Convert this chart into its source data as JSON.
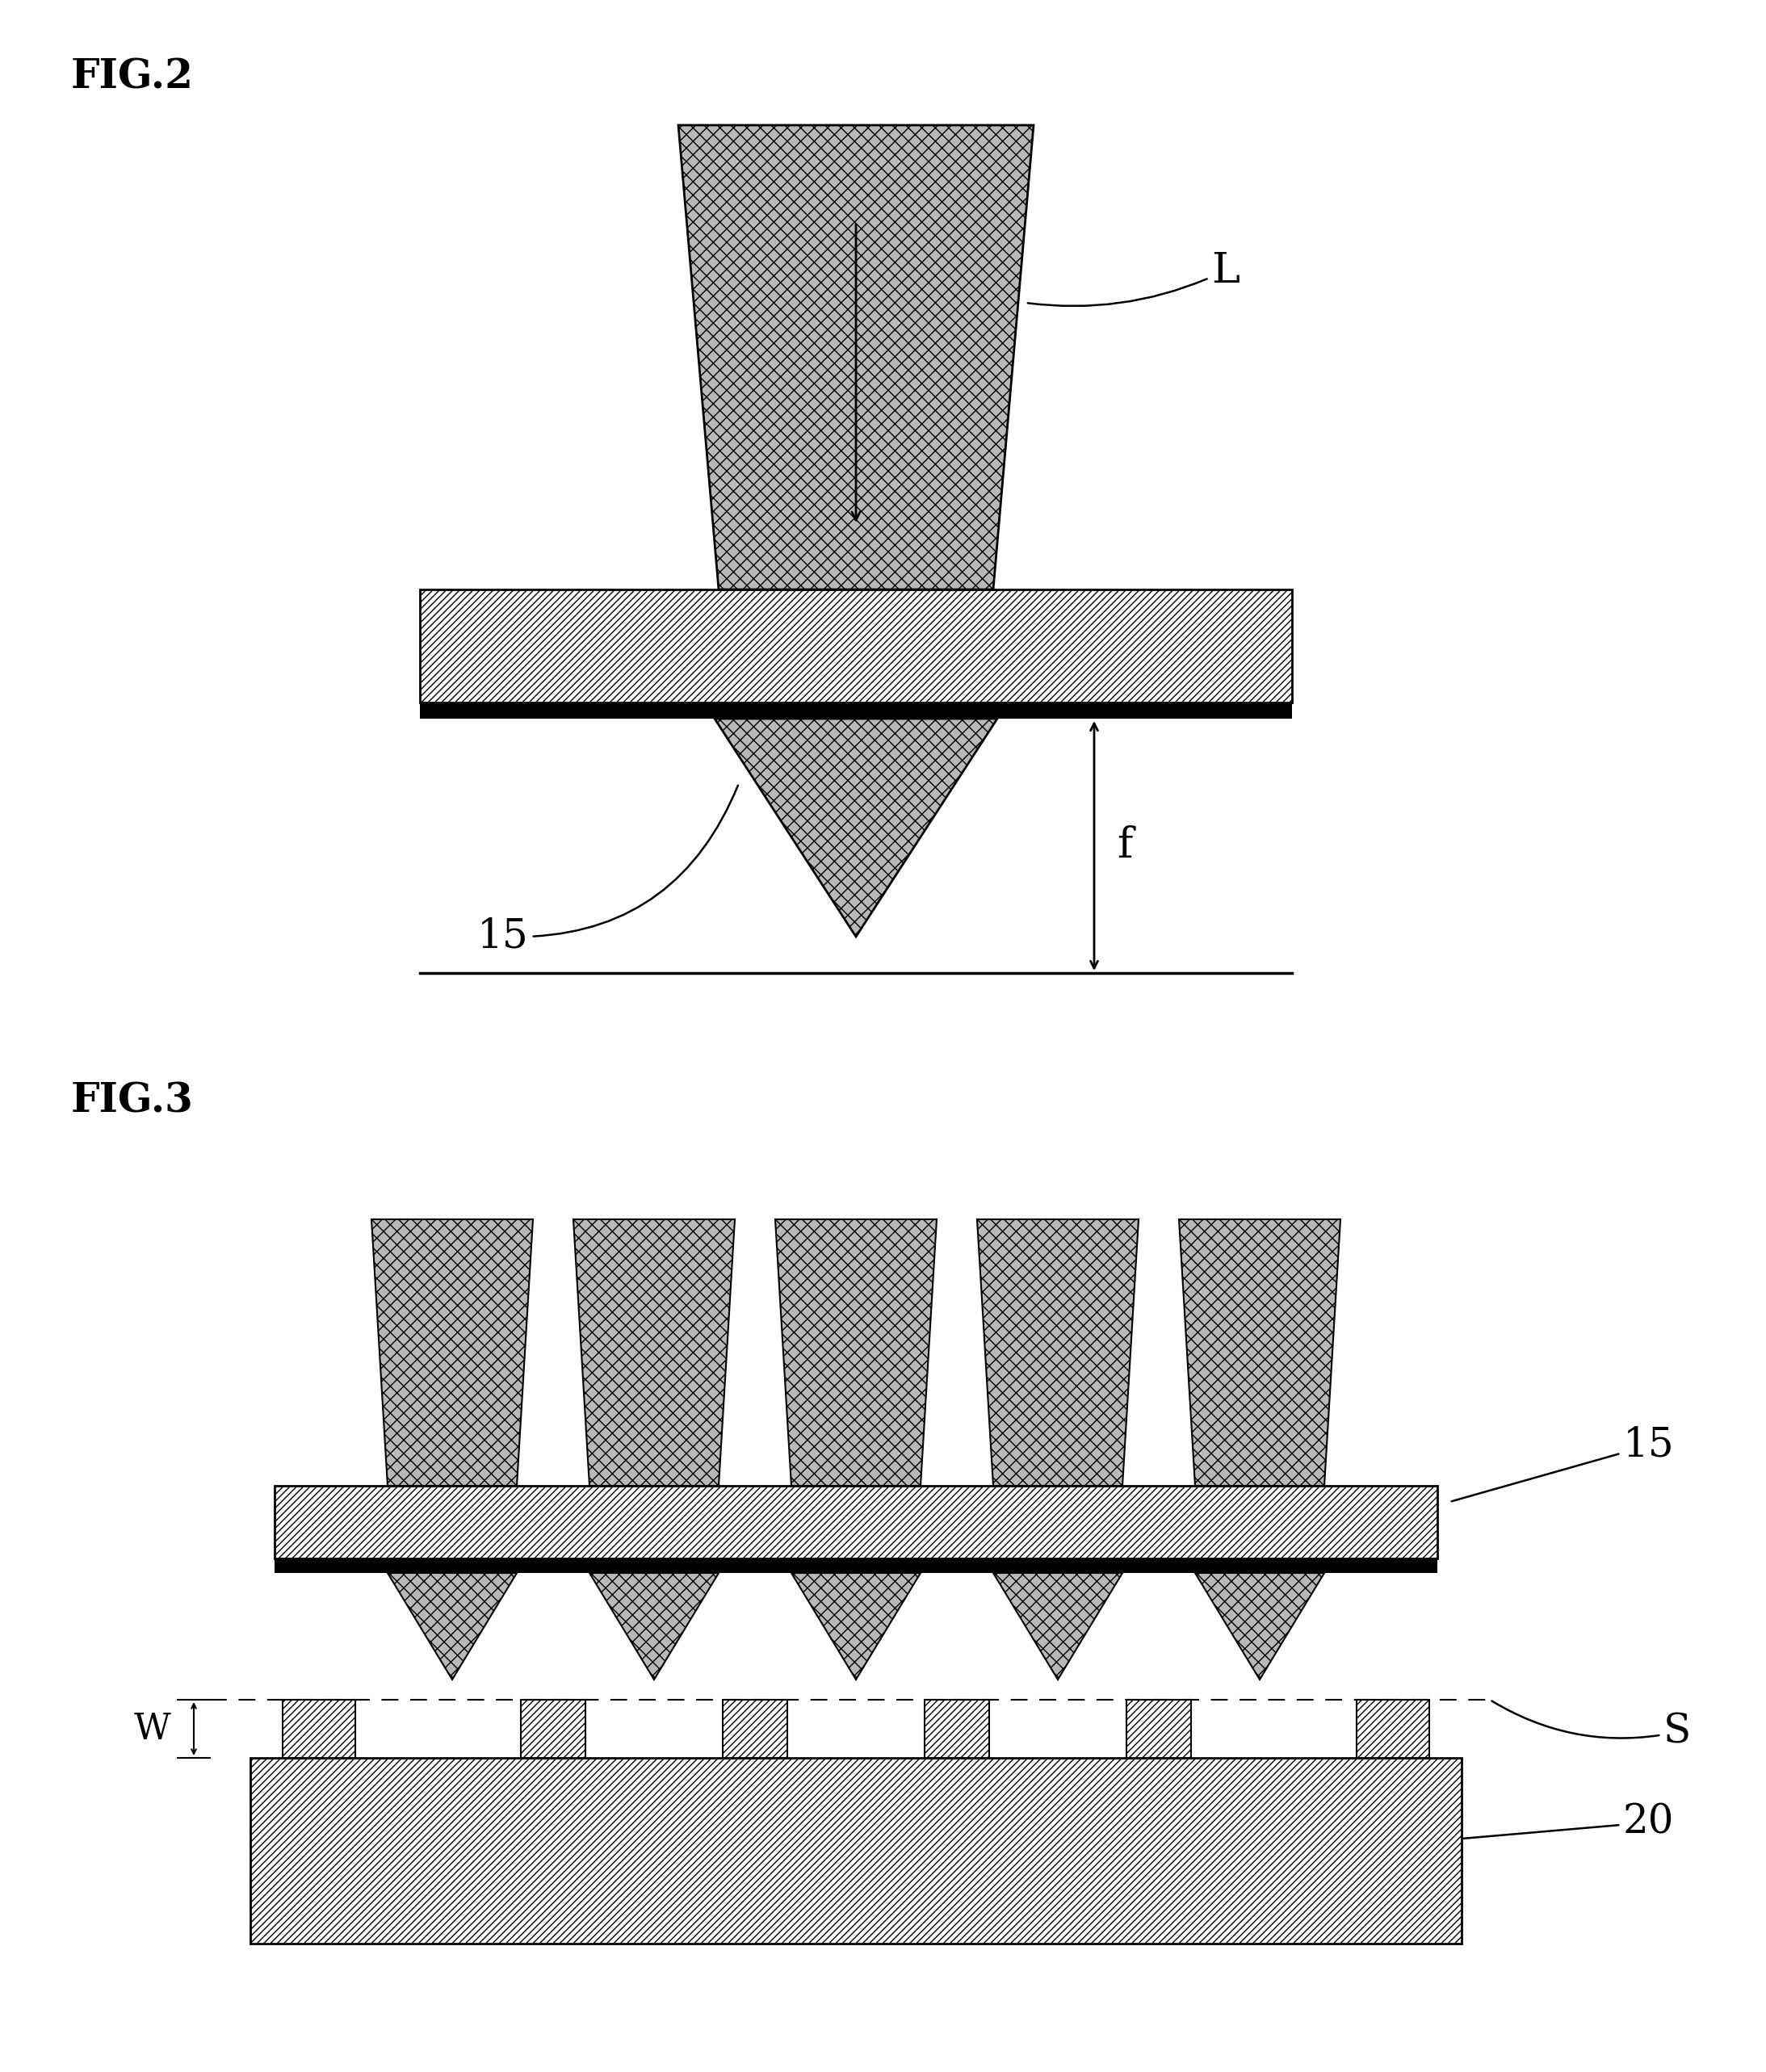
{
  "fig_width": 21.87,
  "fig_height": 25.66,
  "bg_color": "#ffffff",
  "fig2_label": "FIG.2",
  "fig3_label": "FIG.3",
  "label_L": "L",
  "label_15_fig2": "15",
  "label_f": "f",
  "label_15_fig3": "15",
  "label_S": "S",
  "label_W": "W",
  "label_20": "20",
  "beam_fc": "#aaaaaa",
  "lens_fc": "#ffffff",
  "substrate_fc": "#ffffff"
}
